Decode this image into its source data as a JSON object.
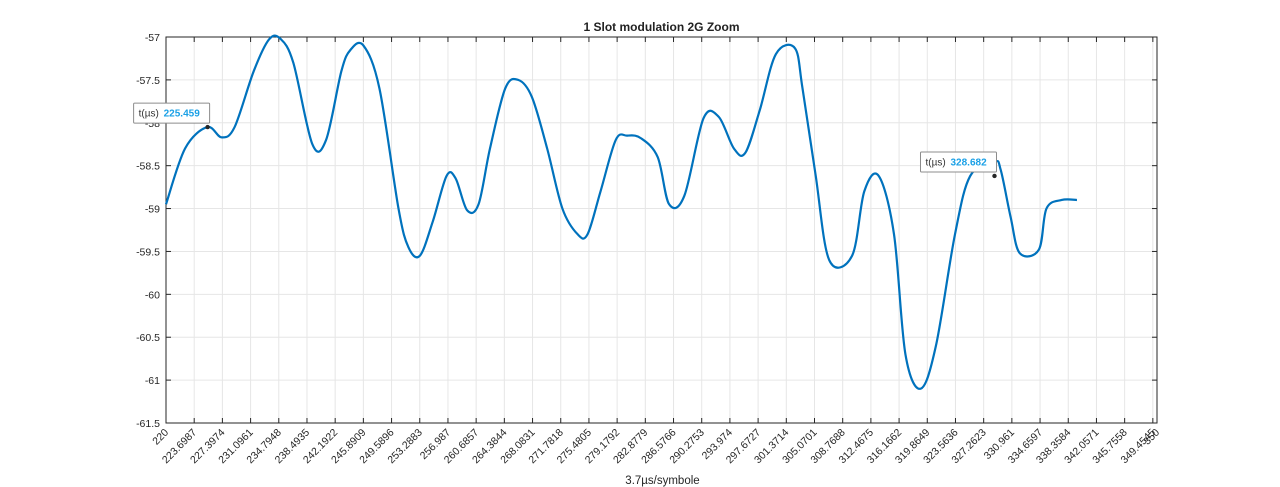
{
  "chart_data": {
    "type": "line",
    "title": "1 Slot modulation 2G Zoom",
    "xlabel": "3.7µs/symbole",
    "ylabel": "",
    "xlim": [
      220,
      350
    ],
    "ylim": [
      -61.5,
      -57
    ],
    "grid": true,
    "x_ticks": [
      "220",
      "223.6987",
      "227.3974",
      "231.0961",
      "234.7948",
      "238.4935",
      "242.1922",
      "245.8909",
      "249.5896",
      "253.2883",
      "256.987",
      "260.6857",
      "264.3844",
      "268.0831",
      "271.7818",
      "275.4805",
      "279.1792",
      "282.8779",
      "286.5766",
      "290.2753",
      "293.974",
      "297.6727",
      "301.3714",
      "305.0701",
      "308.7688",
      "312.4675",
      "316.1662",
      "319.8649",
      "323.5636",
      "327.2623",
      "330.961",
      "334.6597",
      "338.3584",
      "342.0571",
      "345.7558",
      "349.4545",
      "350"
    ],
    "y_ticks": [
      "-57",
      "-57.5",
      "-58",
      "-58.5",
      "-59",
      "-59.5",
      "-60",
      "-60.5",
      "-61",
      "-61.5"
    ],
    "series": [
      {
        "color": "#0072BD",
        "x": [
          220,
          222.5,
          225.4,
          227.3,
          229,
          231.5,
          233.5,
          235,
          236.7,
          239.2,
          241,
          243,
          244.2,
          245.9,
          248,
          250.5,
          251.8,
          253.3,
          255,
          256.8,
          258,
          259.5,
          261,
          262.5,
          264.5,
          266.2,
          268,
          270,
          272,
          274,
          275.3,
          277,
          279,
          280.5,
          282.3,
          284.5,
          286,
          288,
          290.5,
          292.5,
          294.5,
          296,
          297.9,
          300,
          302.5,
          303.5,
          305.2,
          307,
          310,
          311.6,
          313.5,
          315.5,
          317,
          319,
          321,
          323.5,
          325.5,
          328.682,
          329.5,
          330.8,
          332,
          334.5,
          335.5,
          337.5,
          339.5
        ],
        "y": [
          -58.95,
          -58.3,
          -58.05,
          -58.17,
          -58.05,
          -57.4,
          -57.03,
          -57.02,
          -57.3,
          -58.25,
          -58.2,
          -57.4,
          -57.15,
          -57.1,
          -57.6,
          -59.0,
          -59.45,
          -59.55,
          -59.15,
          -58.62,
          -58.65,
          -59.02,
          -58.95,
          -58.3,
          -57.6,
          -57.5,
          -57.7,
          -58.3,
          -59.0,
          -59.3,
          -59.3,
          -58.8,
          -58.2,
          -58.15,
          -58.18,
          -58.4,
          -58.95,
          -58.85,
          -57.95,
          -57.93,
          -58.3,
          -58.35,
          -57.85,
          -57.2,
          -57.13,
          -57.6,
          -58.6,
          -59.6,
          -59.55,
          -58.8,
          -58.62,
          -59.3,
          -60.7,
          -61.1,
          -60.6,
          -59.3,
          -58.62,
          -58.45,
          -58.55,
          -59.1,
          -59.52,
          -59.48,
          -59.0,
          -58.9,
          -58.9
        ]
      }
    ],
    "datatips": [
      {
        "label": "t(µs)",
        "value": "225.459",
        "x": 225.459,
        "y": -58.05
      },
      {
        "label": "t(µs)",
        "value": "328.682",
        "x": 328.682,
        "y": -58.62
      }
    ]
  }
}
